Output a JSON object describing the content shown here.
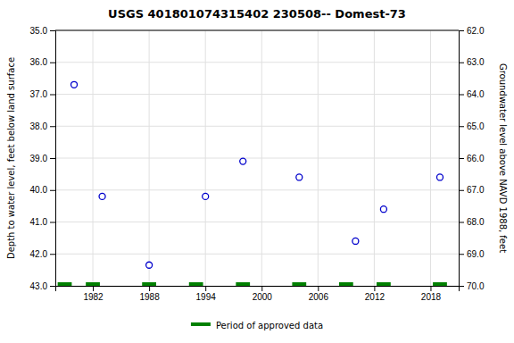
{
  "chart_data": {
    "type": "scatter",
    "title": "USGS 401801074315402 230508-- Domest-73",
    "y_label": "Depth to water level, feet below land surface",
    "y2_label": "Groundwater level above NAVD 1988, feet",
    "x": [
      1980,
      1983,
      1988,
      1994,
      1998,
      2004,
      2010,
      2013,
      2019
    ],
    "series": [
      {
        "type": "scatter",
        "marker": "circle",
        "color": "#0000cc",
        "values": [
          36.7,
          40.2,
          42.35,
          40.2,
          39.1,
          39.6,
          41.6,
          40.6,
          39.6
        ]
      },
      {
        "type": "bar",
        "name": "Period of approved data",
        "color": "#008000",
        "x": [
          1979,
          1982,
          1988,
          1993,
          1998,
          2004,
          2009,
          2013,
          2019
        ],
        "values": [
          43.0,
          43.0,
          43.0,
          43.0,
          43.0,
          43.0,
          43.0,
          43.0,
          43.0
        ]
      }
    ],
    "xlim": [
      1978,
      2021
    ],
    "xticks": [
      1982,
      1988,
      1994,
      2000,
      2006,
      2012,
      2018
    ],
    "ylim": [
      43.0,
      35.0
    ],
    "yticks": [
      {
        "value": 35.0,
        "label": "35.0"
      },
      {
        "value": 36.0,
        "label": "36.0"
      },
      {
        "value": 37.0,
        "label": "37.0"
      },
      {
        "value": 38.0,
        "label": "38.0"
      },
      {
        "value": 39.0,
        "label": "39.0"
      },
      {
        "value": 40.0,
        "label": "40.0"
      },
      {
        "value": 41.0,
        "label": "41.0"
      },
      {
        "value": 42.0,
        "label": "42.0"
      },
      {
        "value": 43.0,
        "label": "43.0"
      }
    ],
    "y2lim": [
      70.0,
      62.0
    ],
    "y2ticks": [
      {
        "value": 62.0,
        "label": "62.0"
      },
      {
        "value": 63.0,
        "label": "63.0"
      },
      {
        "value": 64.0,
        "label": "64.0"
      },
      {
        "value": 65.0,
        "label": "65.0"
      },
      {
        "value": 66.0,
        "label": "66.0"
      },
      {
        "value": 67.0,
        "label": "67.0"
      },
      {
        "value": 68.0,
        "label": "68.0"
      },
      {
        "value": 69.0,
        "label": "69.0"
      },
      {
        "value": 70.0,
        "label": "70.0"
      }
    ],
    "grid": true,
    "legend": "bottom"
  }
}
